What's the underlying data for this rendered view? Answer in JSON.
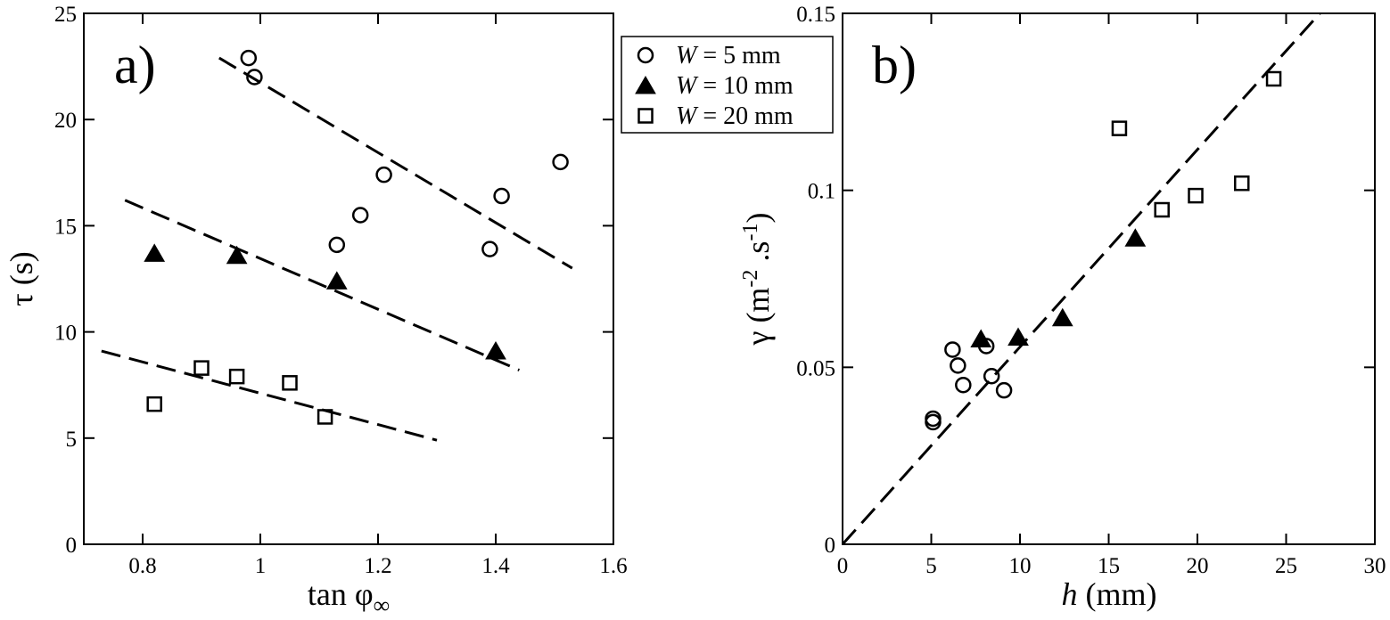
{
  "legend": {
    "entries": [
      {
        "series_key": "w5",
        "italic": "W",
        "rest": " = 5 mm",
        "marker": "open-circle"
      },
      {
        "series_key": "w10",
        "italic": "W",
        "rest": " = 10 mm",
        "marker": "filled-triangle"
      },
      {
        "series_key": "w20",
        "italic": "W",
        "rest": " = 20 mm",
        "marker": "open-square"
      }
    ]
  },
  "chart_data": [
    {
      "type": "scatter",
      "panel_label": "a)",
      "xlabel": "tan φ∞",
      "ylabel": "τ (s)",
      "xlim": [
        0.7,
        1.6
      ],
      "ylim": [
        0,
        25
      ],
      "xticks": [
        0.8,
        1,
        1.2,
        1.4,
        1.6
      ],
      "xtick_labels": [
        "0.8",
        "1",
        "1.2",
        "1.4",
        "1.6"
      ],
      "yticks": [
        0,
        5,
        10,
        15,
        20,
        25
      ],
      "ytick_labels": [
        "0",
        "5",
        "10",
        "15",
        "20",
        "25"
      ],
      "series": [
        {
          "key": "w5",
          "marker": "open-circle",
          "x": [
            0.98,
            0.99,
            1.13,
            1.17,
            1.21,
            1.39,
            1.41,
            1.51
          ],
          "y": [
            22.9,
            22.0,
            14.1,
            15.5,
            17.4,
            13.9,
            16.4,
            18.0
          ]
        },
        {
          "key": "w10",
          "marker": "filled-triangle",
          "x": [
            0.82,
            0.96,
            1.13,
            1.4
          ],
          "y": [
            13.7,
            13.6,
            12.4,
            9.1
          ]
        },
        {
          "key": "w20",
          "marker": "open-square",
          "x": [
            0.82,
            0.9,
            0.96,
            1.05,
            1.11
          ],
          "y": [
            6.6,
            8.3,
            7.9,
            7.6,
            6.0
          ]
        }
      ],
      "fit_lines": [
        {
          "for": "w5",
          "x": [
            0.93,
            1.53
          ],
          "y": [
            22.9,
            13.0
          ]
        },
        {
          "for": "w10",
          "x": [
            0.77,
            1.44
          ],
          "y": [
            16.2,
            8.2
          ]
        },
        {
          "for": "w20",
          "x": [
            0.73,
            1.3
          ],
          "y": [
            9.1,
            4.9
          ]
        }
      ]
    },
    {
      "type": "scatter",
      "panel_label": "b)",
      "xlabel": "h (mm)",
      "ylabel": "γ (m⁻².s⁻¹)",
      "xlim": [
        0,
        30
      ],
      "ylim": [
        0,
        0.15
      ],
      "xticks": [
        0,
        5,
        10,
        15,
        20,
        25,
        30
      ],
      "xtick_labels": [
        "0",
        "5",
        "10",
        "15",
        "20",
        "25",
        "30"
      ],
      "yticks": [
        0,
        0.05,
        0.1,
        0.15
      ],
      "ytick_labels": [
        "0",
        "0.05",
        "0.1",
        "0.15"
      ],
      "series": [
        {
          "key": "w5",
          "marker": "open-circle",
          "x": [
            5.1,
            5.1,
            6.2,
            6.5,
            6.8,
            8.1,
            8.4,
            9.1
          ],
          "y": [
            0.0345,
            0.0355,
            0.055,
            0.0505,
            0.045,
            0.056,
            0.0475,
            0.0435
          ]
        },
        {
          "key": "w10",
          "marker": "filled-triangle",
          "x": [
            7.8,
            9.9,
            12.4,
            16.5
          ],
          "y": [
            0.058,
            0.0585,
            0.064,
            0.0865
          ]
        },
        {
          "key": "w20",
          "marker": "open-square",
          "x": [
            15.6,
            18.0,
            19.9,
            22.5,
            24.3
          ],
          "y": [
            0.1175,
            0.0945,
            0.0985,
            0.102,
            0.1315
          ]
        }
      ],
      "fit_lines": [
        {
          "for": "all",
          "x": [
            0,
            26.9
          ],
          "y": [
            0,
            0.15
          ]
        }
      ]
    }
  ]
}
